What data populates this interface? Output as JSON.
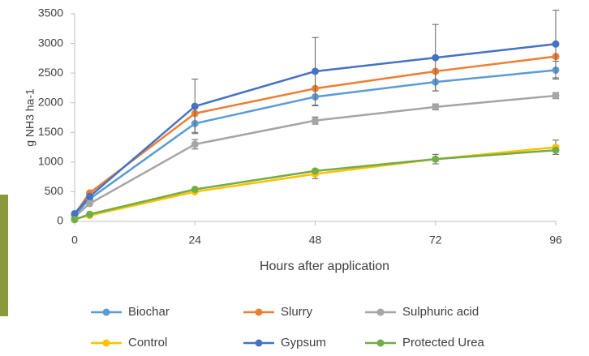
{
  "chart_data": {
    "type": "line",
    "x_label": "Hours after application",
    "y_label": "g NH3 ha-1",
    "xlim": [
      0,
      96
    ],
    "xticks": [
      0,
      24,
      48,
      72,
      96
    ],
    "ylim": [
      0,
      3500
    ],
    "yticks": [
      0,
      500,
      1000,
      1500,
      2000,
      2500,
      3000,
      3500
    ],
    "x": [
      0,
      3,
      24,
      48,
      72,
      96
    ],
    "series": [
      {
        "name": "Biochar",
        "color": "#5b9bd5",
        "values": [
          100,
          380,
          1650,
          2100,
          2350,
          2550
        ],
        "errors": [
          null,
          null,
          150,
          150,
          150,
          150
        ]
      },
      {
        "name": "Slurry",
        "color": "#ed7d31",
        "values": [
          120,
          480,
          1820,
          2240,
          2530,
          2780
        ],
        "errors": [
          null,
          null,
          null,
          null,
          null,
          null
        ]
      },
      {
        "name": "Sulphuric acid",
        "color": "#a5a5a5",
        "values": [
          80,
          300,
          1300,
          1700,
          1930,
          2120
        ],
        "errors": [
          null,
          null,
          80,
          60,
          50,
          50
        ]
      },
      {
        "name": "Control",
        "color": "#ffc000",
        "values": [
          40,
          100,
          500,
          800,
          1050,
          1250
        ],
        "errors": [
          null,
          null,
          null,
          80,
          80,
          120
        ]
      },
      {
        "name": "Gypsum",
        "color": "#4472c4",
        "values": [
          130,
          420,
          1940,
          2530,
          2760,
          2990
        ],
        "errors": [
          null,
          null,
          460,
          570,
          560,
          570
        ]
      },
      {
        "name": "Protected Urea",
        "color": "#70ad47",
        "values": [
          30,
          120,
          540,
          850,
          1050,
          1200
        ],
        "errors": [
          null,
          null,
          null,
          null,
          null,
          null
        ]
      }
    ]
  }
}
